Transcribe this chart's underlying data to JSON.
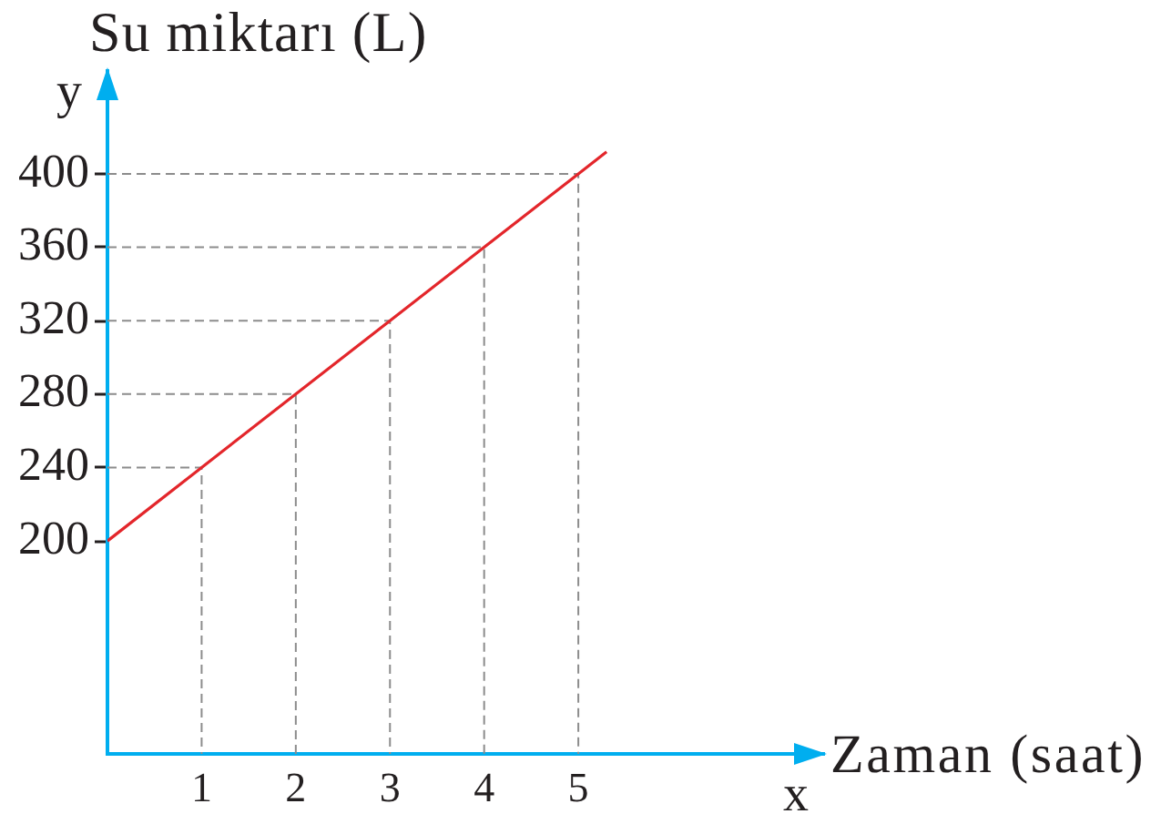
{
  "chart_data": {
    "type": "line",
    "xlabel": "Zaman (saat)",
    "ylabel": "Su miktarı (L)",
    "annotations": [
      "y",
      "x"
    ],
    "x": [
      0,
      1,
      2,
      3,
      4,
      5,
      5.3
    ],
    "series": [
      {
        "color": "#e3262b",
        "line_style": "solid",
        "values": [
          200,
          240,
          280,
          320,
          360,
          400,
          412
        ]
      },
      {
        "color": "#8c8c8c",
        "line_style": "dashed",
        "x": [
          0,
          1,
          1
        ],
        "values": [
          240,
          240,
          84
        ]
      },
      {
        "color": "#8c8c8c",
        "line_style": "dashed",
        "x": [
          0,
          2,
          2
        ],
        "values": [
          280,
          280,
          84
        ]
      },
      {
        "color": "#8c8c8c",
        "line_style": "dashed",
        "x": [
          0,
          3,
          3
        ],
        "values": [
          320,
          320,
          84
        ]
      },
      {
        "color": "#8c8c8c",
        "line_style": "dashed",
        "x": [
          0,
          4,
          4
        ],
        "values": [
          360,
          360,
          84
        ]
      },
      {
        "color": "#8c8c8c",
        "line_style": "dashed",
        "x": [
          0,
          5,
          5
        ],
        "values": [
          400,
          400,
          84
        ]
      }
    ],
    "xlim": [
      0,
      7.6
    ],
    "ylim": [
      84,
      456
    ],
    "xticks": [
      1,
      2,
      3,
      4,
      5
    ],
    "yticks": [
      200,
      240,
      280,
      320,
      360,
      400
    ],
    "marker": "none"
  }
}
